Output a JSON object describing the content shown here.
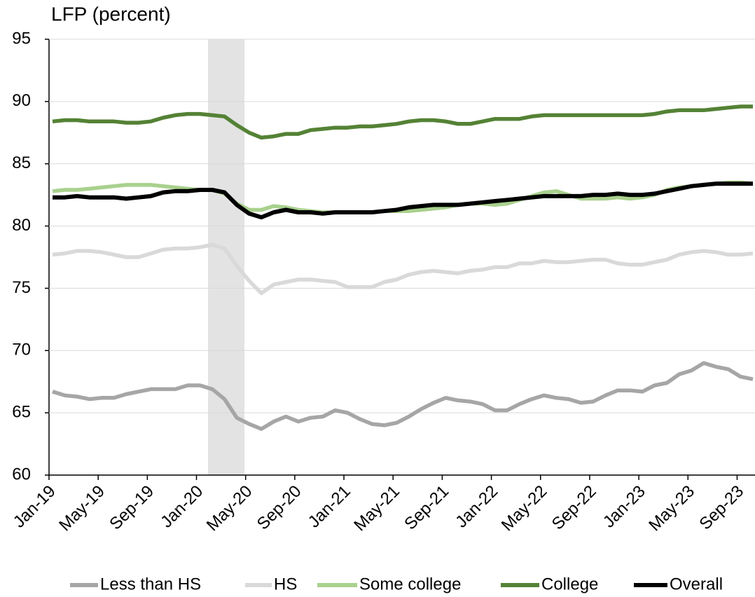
{
  "chart_data": {
    "type": "line",
    "y_axis_title": "LFP (percent)",
    "categories": [
      "Jan-19",
      null,
      null,
      null,
      "May-19",
      null,
      null,
      null,
      "Sep-19",
      null,
      null,
      null,
      "Jan-20",
      null,
      null,
      null,
      "May-20",
      null,
      null,
      null,
      "Sep-20",
      null,
      null,
      null,
      "Jan-21",
      null,
      null,
      null,
      "May-21",
      null,
      null,
      null,
      "Sep-21",
      null,
      null,
      null,
      "Jan-22",
      null,
      null,
      null,
      "May-22",
      null,
      null,
      null,
      "Sep-22",
      null,
      null,
      null,
      "Jan-23",
      null,
      null,
      null,
      "May-23",
      null,
      null,
      null,
      "Sep-23",
      null
    ],
    "ylim": [
      60,
      95
    ],
    "yticks": [
      60,
      65,
      70,
      75,
      80,
      85,
      90,
      95
    ],
    "grid": true,
    "series": [
      {
        "name": "Less than HS",
        "color": "#a6a6a6",
        "values": [
          66.7,
          66.4,
          66.3,
          66.1,
          66.2,
          66.2,
          66.5,
          66.7,
          66.9,
          66.9,
          66.9,
          67.2,
          67.2,
          66.9,
          66.1,
          64.6,
          64.1,
          63.7,
          64.3,
          64.7,
          64.3,
          64.6,
          64.7,
          65.2,
          65.0,
          64.5,
          64.1,
          64.0,
          64.2,
          64.7,
          65.3,
          65.8,
          66.2,
          66.0,
          65.9,
          65.7,
          65.2,
          65.2,
          65.7,
          66.1,
          66.4,
          66.2,
          66.1,
          65.8,
          65.9,
          66.4,
          66.8,
          66.8,
          66.7,
          67.2,
          67.4,
          68.1,
          68.4,
          69.0,
          68.7,
          68.5,
          67.9,
          67.7
        ]
      },
      {
        "name": "HS",
        "color": "#d9d9d9",
        "values": [
          77.7,
          77.8,
          78.0,
          78.0,
          77.9,
          77.7,
          77.5,
          77.5,
          77.8,
          78.1,
          78.2,
          78.2,
          78.3,
          78.5,
          78.2,
          76.8,
          75.6,
          74.6,
          75.3,
          75.5,
          75.7,
          75.7,
          75.6,
          75.5,
          75.1,
          75.1,
          75.1,
          75.5,
          75.7,
          76.1,
          76.3,
          76.4,
          76.3,
          76.2,
          76.4,
          76.5,
          76.7,
          76.7,
          77.0,
          77.0,
          77.2,
          77.1,
          77.1,
          77.2,
          77.3,
          77.3,
          77.0,
          76.9,
          76.9,
          77.1,
          77.3,
          77.7,
          77.9,
          78.0,
          77.9,
          77.7,
          77.7,
          77.8
        ]
      },
      {
        "name": "Some college",
        "color": "#a9d18e",
        "values": [
          82.8,
          82.9,
          82.9,
          83.0,
          83.1,
          83.2,
          83.3,
          83.3,
          83.3,
          83.2,
          83.1,
          83.0,
          82.9,
          82.9,
          82.6,
          81.8,
          81.3,
          81.3,
          81.6,
          81.5,
          81.3,
          81.2,
          81.1,
          81.1,
          81.1,
          81.1,
          81.1,
          81.2,
          81.2,
          81.2,
          81.3,
          81.4,
          81.5,
          81.7,
          81.8,
          81.8,
          81.7,
          81.8,
          82.1,
          82.4,
          82.7,
          82.8,
          82.5,
          82.2,
          82.2,
          82.2,
          82.3,
          82.2,
          82.3,
          82.5,
          82.9,
          83.1,
          83.2,
          83.3,
          83.4,
          83.5,
          83.5,
          83.4
        ]
      },
      {
        "name": "College",
        "color": "#548235",
        "values": [
          88.4,
          88.5,
          88.5,
          88.4,
          88.4,
          88.4,
          88.3,
          88.3,
          88.4,
          88.7,
          88.9,
          89.0,
          89.0,
          88.9,
          88.8,
          88.1,
          87.5,
          87.1,
          87.2,
          87.4,
          87.4,
          87.7,
          87.8,
          87.9,
          87.9,
          88.0,
          88.0,
          88.1,
          88.2,
          88.4,
          88.5,
          88.5,
          88.4,
          88.2,
          88.2,
          88.4,
          88.6,
          88.6,
          88.6,
          88.8,
          88.9,
          88.9,
          88.9,
          88.9,
          88.9,
          88.9,
          88.9,
          88.9,
          88.9,
          89.0,
          89.2,
          89.3,
          89.3,
          89.3,
          89.4,
          89.5,
          89.6,
          89.6
        ]
      },
      {
        "name": "Overall",
        "color": "#000000",
        "values": [
          82.3,
          82.3,
          82.4,
          82.3,
          82.3,
          82.3,
          82.2,
          82.3,
          82.4,
          82.7,
          82.8,
          82.8,
          82.9,
          82.9,
          82.7,
          81.7,
          81.0,
          80.7,
          81.1,
          81.3,
          81.1,
          81.1,
          81.0,
          81.1,
          81.1,
          81.1,
          81.1,
          81.2,
          81.3,
          81.5,
          81.6,
          81.7,
          81.7,
          81.7,
          81.8,
          81.9,
          82.0,
          82.1,
          82.2,
          82.3,
          82.4,
          82.4,
          82.4,
          82.4,
          82.5,
          82.5,
          82.6,
          82.5,
          82.5,
          82.6,
          82.8,
          83.0,
          83.2,
          83.3,
          83.4,
          83.4,
          83.4,
          83.4
        ]
      }
    ]
  }
}
